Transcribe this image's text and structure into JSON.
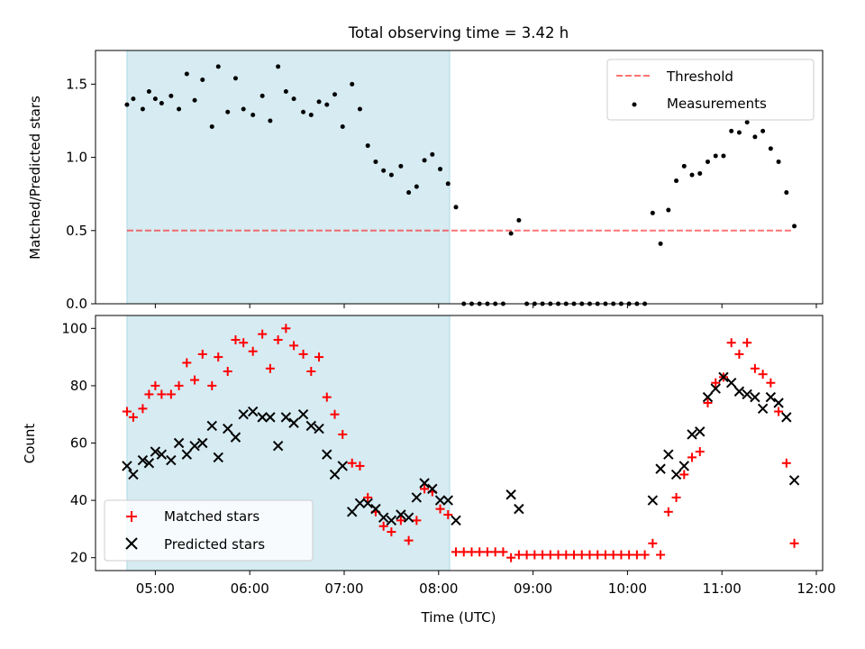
{
  "title": "Total observing time = 3.42 h",
  "colors": {
    "highlight": "#add8e6",
    "threshold": "#ff0000",
    "measurement": "#000000",
    "matched": "#ff0000",
    "predicted": "#000000"
  },
  "chart_data": [
    {
      "id": "ratio",
      "type": "scatter",
      "title": "Total observing time = 3.42 h",
      "xlabel": "",
      "ylabel": "Matched/Predicted stars",
      "xlim": [
        "04:22",
        "12:04"
      ],
      "ylim": [
        0,
        1.73
      ],
      "y_ticks": [
        "0.0",
        "0.5",
        "1.0",
        "1.5"
      ],
      "grid": false,
      "legend": {
        "position": "top-right",
        "entries": [
          "Threshold",
          "Measurements"
        ]
      },
      "highlight_span": [
        "04:42",
        "08:07"
      ],
      "threshold": {
        "name": "Threshold",
        "y": 0.5,
        "x_range": [
          "04:42",
          "11:45"
        ],
        "style": "dashed"
      },
      "series": [
        {
          "name": "Measurements",
          "marker": "dot",
          "points": [
            [
              "04:42",
              1.36
            ],
            [
              "04:46",
              1.4
            ],
            [
              "04:52",
              1.33
            ],
            [
              "04:56",
              1.45
            ],
            [
              "05:00",
              1.4
            ],
            [
              "05:04",
              1.37
            ],
            [
              "05:10",
              1.42
            ],
            [
              "05:15",
              1.33
            ],
            [
              "05:20",
              1.57
            ],
            [
              "05:25",
              1.39
            ],
            [
              "05:30",
              1.53
            ],
            [
              "05:36",
              1.21
            ],
            [
              "05:40",
              1.62
            ],
            [
              "05:46",
              1.31
            ],
            [
              "05:51",
              1.54
            ],
            [
              "05:56",
              1.33
            ],
            [
              "06:02",
              1.29
            ],
            [
              "06:08",
              1.42
            ],
            [
              "06:13",
              1.25
            ],
            [
              "06:18",
              1.62
            ],
            [
              "06:23",
              1.45
            ],
            [
              "06:28",
              1.4
            ],
            [
              "06:34",
              1.31
            ],
            [
              "06:39",
              1.29
            ],
            [
              "06:44",
              1.38
            ],
            [
              "06:49",
              1.36
            ],
            [
              "06:54",
              1.43
            ],
            [
              "06:59",
              1.21
            ],
            [
              "07:05",
              1.5
            ],
            [
              "07:10",
              1.33
            ],
            [
              "07:15",
              1.08
            ],
            [
              "07:20",
              0.97
            ],
            [
              "07:25",
              0.91
            ],
            [
              "07:30",
              0.88
            ],
            [
              "07:36",
              0.94
            ],
            [
              "07:41",
              0.76
            ],
            [
              "07:46",
              0.8
            ],
            [
              "07:51",
              0.98
            ],
            [
              "07:56",
              1.02
            ],
            [
              "08:01",
              0.92
            ],
            [
              "08:06",
              0.82
            ],
            [
              "08:11",
              0.66
            ],
            [
              "08:16",
              0.0
            ],
            [
              "08:21",
              0.0
            ],
            [
              "08:26",
              0.0
            ],
            [
              "08:31",
              0.0
            ],
            [
              "08:36",
              0.0
            ],
            [
              "08:41",
              0.0
            ],
            [
              "08:46",
              0.48
            ],
            [
              "08:51",
              0.57
            ],
            [
              "08:56",
              0.0
            ],
            [
              "09:01",
              0.0
            ],
            [
              "09:06",
              0.0
            ],
            [
              "09:11",
              0.0
            ],
            [
              "09:16",
              0.0
            ],
            [
              "09:21",
              0.0
            ],
            [
              "09:26",
              0.0
            ],
            [
              "09:31",
              0.0
            ],
            [
              "09:36",
              0.0
            ],
            [
              "09:41",
              0.0
            ],
            [
              "09:46",
              0.0
            ],
            [
              "09:51",
              0.0
            ],
            [
              "09:56",
              0.0
            ],
            [
              "10:01",
              0.0
            ],
            [
              "10:06",
              0.0
            ],
            [
              "10:11",
              0.0
            ],
            [
              "10:16",
              0.62
            ],
            [
              "10:21",
              0.41
            ],
            [
              "10:26",
              0.64
            ],
            [
              "10:31",
              0.84
            ],
            [
              "10:36",
              0.94
            ],
            [
              "10:41",
              0.88
            ],
            [
              "10:46",
              0.89
            ],
            [
              "10:51",
              0.97
            ],
            [
              "10:56",
              1.01
            ],
            [
              "11:01",
              1.01
            ],
            [
              "11:06",
              1.18
            ],
            [
              "11:11",
              1.17
            ],
            [
              "11:16",
              1.24
            ],
            [
              "11:21",
              1.14
            ],
            [
              "11:26",
              1.18
            ],
            [
              "11:31",
              1.06
            ],
            [
              "11:36",
              0.97
            ],
            [
              "11:41",
              0.76
            ],
            [
              "11:46",
              0.53
            ]
          ]
        }
      ]
    },
    {
      "id": "count",
      "type": "scatter",
      "title": "",
      "xlabel": "Time (UTC)",
      "ylabel": "Count",
      "xlim": [
        "04:22",
        "12:04"
      ],
      "ylim": [
        15.5,
        104.5
      ],
      "y_ticks": [
        "20",
        "40",
        "60",
        "80",
        "100"
      ],
      "x_ticks": [
        "05:00",
        "06:00",
        "07:00",
        "08:00",
        "09:00",
        "10:00",
        "11:00",
        "12:00"
      ],
      "grid": false,
      "legend": {
        "position": "bottom-left",
        "entries": [
          "Matched stars",
          "Predicted stars"
        ]
      },
      "highlight_span": [
        "04:42",
        "08:07"
      ],
      "series": [
        {
          "name": "Matched stars",
          "marker": "plus",
          "points": [
            [
              "04:42",
              71
            ],
            [
              "04:46",
              69
            ],
            [
              "04:52",
              72
            ],
            [
              "04:56",
              77
            ],
            [
              "05:00",
              80
            ],
            [
              "05:04",
              77
            ],
            [
              "05:10",
              77
            ],
            [
              "05:15",
              80
            ],
            [
              "05:20",
              88
            ],
            [
              "05:25",
              82
            ],
            [
              "05:30",
              91
            ],
            [
              "05:36",
              80
            ],
            [
              "05:40",
              90
            ],
            [
              "05:46",
              85
            ],
            [
              "05:51",
              96
            ],
            [
              "05:56",
              95
            ],
            [
              "06:02",
              92
            ],
            [
              "06:08",
              98
            ],
            [
              "06:13",
              86
            ],
            [
              "06:18",
              96
            ],
            [
              "06:23",
              100
            ],
            [
              "06:28",
              94
            ],
            [
              "06:34",
              91
            ],
            [
              "06:39",
              85
            ],
            [
              "06:44",
              90
            ],
            [
              "06:49",
              76
            ],
            [
              "06:54",
              70
            ],
            [
              "06:59",
              63
            ],
            [
              "07:05",
              53
            ],
            [
              "07:10",
              52
            ],
            [
              "07:15",
              41
            ],
            [
              "07:20",
              36
            ],
            [
              "07:25",
              31
            ],
            [
              "07:30",
              29
            ],
            [
              "07:36",
              33
            ],
            [
              "07:41",
              26
            ],
            [
              "07:46",
              33
            ],
            [
              "07:51",
              44
            ],
            [
              "07:56",
              43
            ],
            [
              "08:01",
              37
            ],
            [
              "08:06",
              35
            ],
            [
              "08:11",
              22
            ],
            [
              "08:16",
              22
            ],
            [
              "08:21",
              22
            ],
            [
              "08:26",
              22
            ],
            [
              "08:31",
              22
            ],
            [
              "08:36",
              22
            ],
            [
              "08:41",
              22
            ],
            [
              "08:46",
              20
            ],
            [
              "08:51",
              21
            ],
            [
              "08:56",
              21
            ],
            [
              "09:01",
              21
            ],
            [
              "09:06",
              21
            ],
            [
              "09:11",
              21
            ],
            [
              "09:16",
              21
            ],
            [
              "09:21",
              21
            ],
            [
              "09:26",
              21
            ],
            [
              "09:31",
              21
            ],
            [
              "09:36",
              21
            ],
            [
              "09:41",
              21
            ],
            [
              "09:46",
              21
            ],
            [
              "09:51",
              21
            ],
            [
              "09:56",
              21
            ],
            [
              "10:01",
              21
            ],
            [
              "10:06",
              21
            ],
            [
              "10:11",
              21
            ],
            [
              "10:16",
              25
            ],
            [
              "10:21",
              21
            ],
            [
              "10:26",
              36
            ],
            [
              "10:31",
              41
            ],
            [
              "10:36",
              49
            ],
            [
              "10:41",
              55
            ],
            [
              "10:46",
              57
            ],
            [
              "10:51",
              74
            ],
            [
              "10:56",
              81
            ],
            [
              "11:01",
              83
            ],
            [
              "11:06",
              95
            ],
            [
              "11:11",
              91
            ],
            [
              "11:16",
              95
            ],
            [
              "11:21",
              86
            ],
            [
              "11:26",
              84
            ],
            [
              "11:31",
              81
            ],
            [
              "11:36",
              71
            ],
            [
              "11:41",
              53
            ],
            [
              "11:46",
              25
            ]
          ]
        },
        {
          "name": "Predicted stars",
          "marker": "x",
          "points": [
            [
              "04:42",
              52
            ],
            [
              "04:46",
              49
            ],
            [
              "04:52",
              54
            ],
            [
              "04:56",
              53
            ],
            [
              "05:00",
              57
            ],
            [
              "05:04",
              56
            ],
            [
              "05:10",
              54
            ],
            [
              "05:15",
              60
            ],
            [
              "05:20",
              56
            ],
            [
              "05:25",
              59
            ],
            [
              "05:30",
              60
            ],
            [
              "05:36",
              66
            ],
            [
              "05:40",
              55
            ],
            [
              "05:46",
              65
            ],
            [
              "05:51",
              62
            ],
            [
              "05:56",
              70
            ],
            [
              "06:02",
              71
            ],
            [
              "06:08",
              69
            ],
            [
              "06:13",
              69
            ],
            [
              "06:18",
              59
            ],
            [
              "06:23",
              69
            ],
            [
              "06:28",
              67
            ],
            [
              "06:34",
              70
            ],
            [
              "06:39",
              66
            ],
            [
              "06:44",
              65
            ],
            [
              "06:49",
              56
            ],
            [
              "06:54",
              49
            ],
            [
              "06:59",
              52
            ],
            [
              "07:05",
              36
            ],
            [
              "07:10",
              39
            ],
            [
              "07:15",
              39
            ],
            [
              "07:20",
              37
            ],
            [
              "07:25",
              34
            ],
            [
              "07:30",
              33
            ],
            [
              "07:36",
              35
            ],
            [
              "07:41",
              34
            ],
            [
              "07:46",
              41
            ],
            [
              "07:51",
              46
            ],
            [
              "07:56",
              44
            ],
            [
              "08:01",
              40
            ],
            [
              "08:06",
              40
            ],
            [
              "08:11",
              33
            ],
            [
              "08:46",
              42
            ],
            [
              "08:51",
              37
            ],
            [
              "10:16",
              40
            ],
            [
              "10:21",
              51
            ],
            [
              "10:26",
              56
            ],
            [
              "10:31",
              49
            ],
            [
              "10:36",
              52
            ],
            [
              "10:41",
              63
            ],
            [
              "10:46",
              64
            ],
            [
              "10:51",
              76
            ],
            [
              "10:56",
              79
            ],
            [
              "11:01",
              83
            ],
            [
              "11:06",
              81
            ],
            [
              "11:11",
              78
            ],
            [
              "11:16",
              77
            ],
            [
              "11:21",
              76
            ],
            [
              "11:26",
              72
            ],
            [
              "11:31",
              76
            ],
            [
              "11:36",
              74
            ],
            [
              "11:41",
              69
            ],
            [
              "11:46",
              47
            ]
          ]
        }
      ]
    }
  ]
}
